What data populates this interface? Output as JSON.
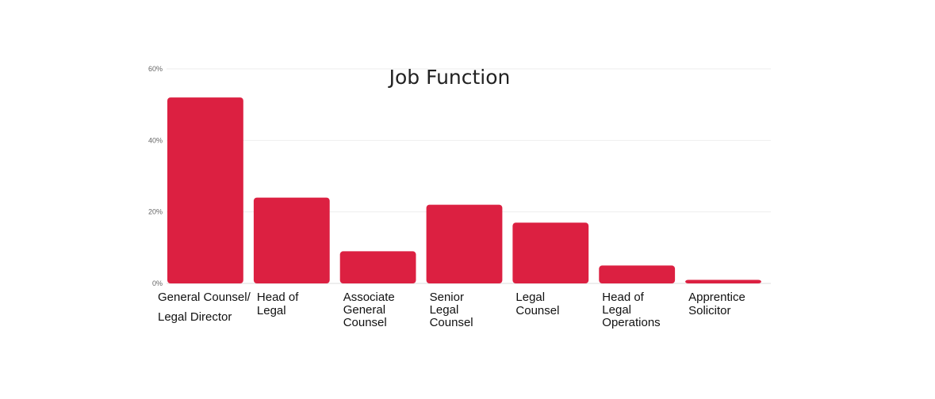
{
  "chart_data": {
    "type": "bar",
    "title": "Job Function",
    "xlabel": "",
    "ylabel": "",
    "ylim": [
      0,
      60
    ],
    "yticks": [
      "0%",
      "20%",
      "40%",
      "60%"
    ],
    "ytick_values": [
      0,
      20,
      40,
      60
    ],
    "grid": true,
    "bar_color": "#dc2041",
    "categories": [
      [
        "General Counsel/",
        "Legal Director"
      ],
      [
        "Head of",
        "Legal"
      ],
      [
        "Associate",
        "General",
        "Counsel"
      ],
      [
        "Senior",
        "Legal",
        "Counsel"
      ],
      [
        "Legal",
        "Counsel"
      ],
      [
        "Head of",
        "Legal",
        "Operations"
      ],
      [
        "Apprentice",
        "Solicitor"
      ]
    ],
    "values": [
      52,
      24,
      9,
      22,
      17,
      5,
      1
    ]
  }
}
